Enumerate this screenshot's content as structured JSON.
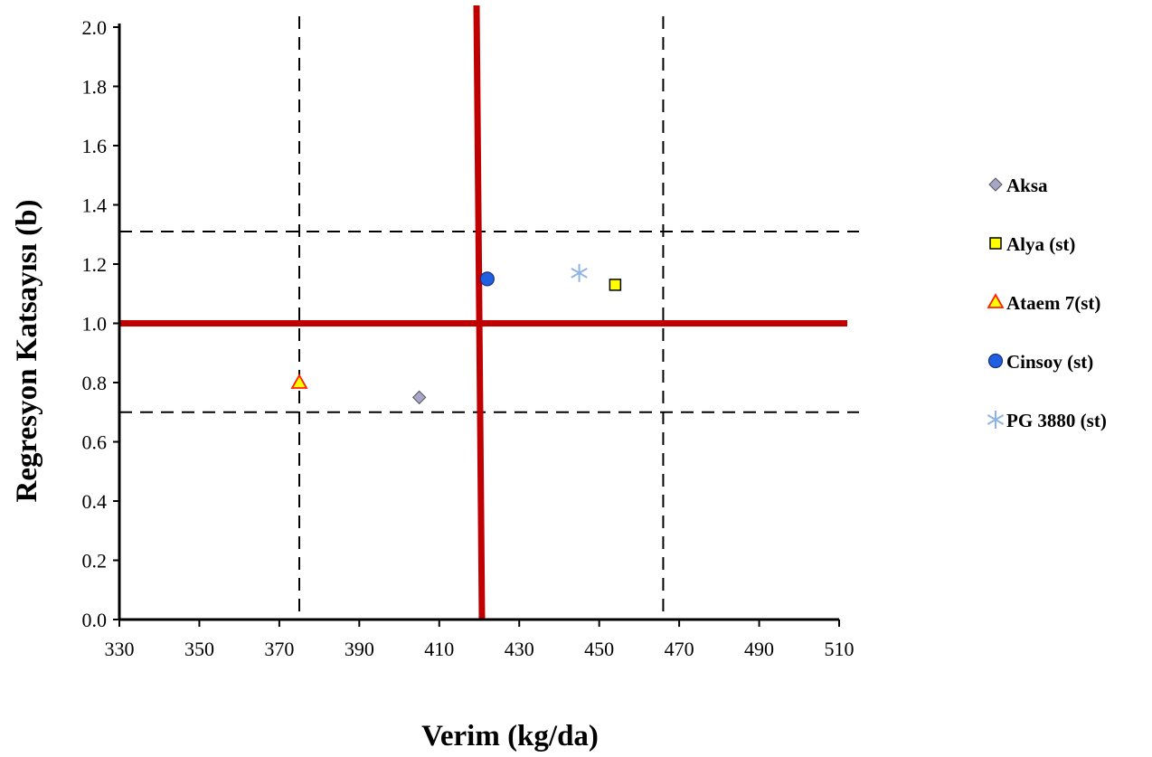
{
  "chart_data": {
    "type": "scatter",
    "xlabel": "Verim (kg/da)",
    "ylabel": "Regresyon Katsayısı (b)",
    "xlim": [
      330,
      510
    ],
    "ylim": [
      0.0,
      2.0
    ],
    "x_ticks": [
      330,
      350,
      370,
      390,
      410,
      430,
      450,
      470,
      490,
      510
    ],
    "y_ticks": [
      0.0,
      0.2,
      0.4,
      0.6,
      0.8,
      1.0,
      1.2,
      1.4,
      1.6,
      1.8,
      2.0
    ],
    "x_tick_labels": [
      "330",
      "350",
      "370",
      "390",
      "410",
      "430",
      "450",
      "470",
      "490",
      "510"
    ],
    "y_tick_labels": [
      "0.0",
      "0.2",
      "0.4",
      "0.6",
      "0.8",
      "1.0",
      "1.2",
      "1.4",
      "1.6",
      "1.8",
      "2.0"
    ],
    "grid": false,
    "legend_position": "right",
    "reference_lines": {
      "mean_yield_x": 420,
      "b_one_y": 1.0,
      "color": "#c00000",
      "dashed_x": [
        375,
        466
      ],
      "dashed_y": [
        0.7,
        1.31
      ]
    },
    "series": [
      {
        "name": "Aksa",
        "x": 405,
        "y": 0.75,
        "marker": "diamond",
        "color": "#a6a6c8"
      },
      {
        "name": "Alya (st)",
        "x": 454,
        "y": 1.13,
        "marker": "square",
        "color": "#ffff00"
      },
      {
        "name": "Ataem 7(st)",
        "x": 375,
        "y": 0.8,
        "marker": "triangle",
        "color": "#ffff00"
      },
      {
        "name": "Cinsoy (st)",
        "x": 422,
        "y": 1.15,
        "marker": "circle",
        "color": "#1f5fe0"
      },
      {
        "name": "PG 3880 (st)",
        "x": 445,
        "y": 1.17,
        "marker": "star",
        "color": "#8fb4e3"
      }
    ]
  }
}
